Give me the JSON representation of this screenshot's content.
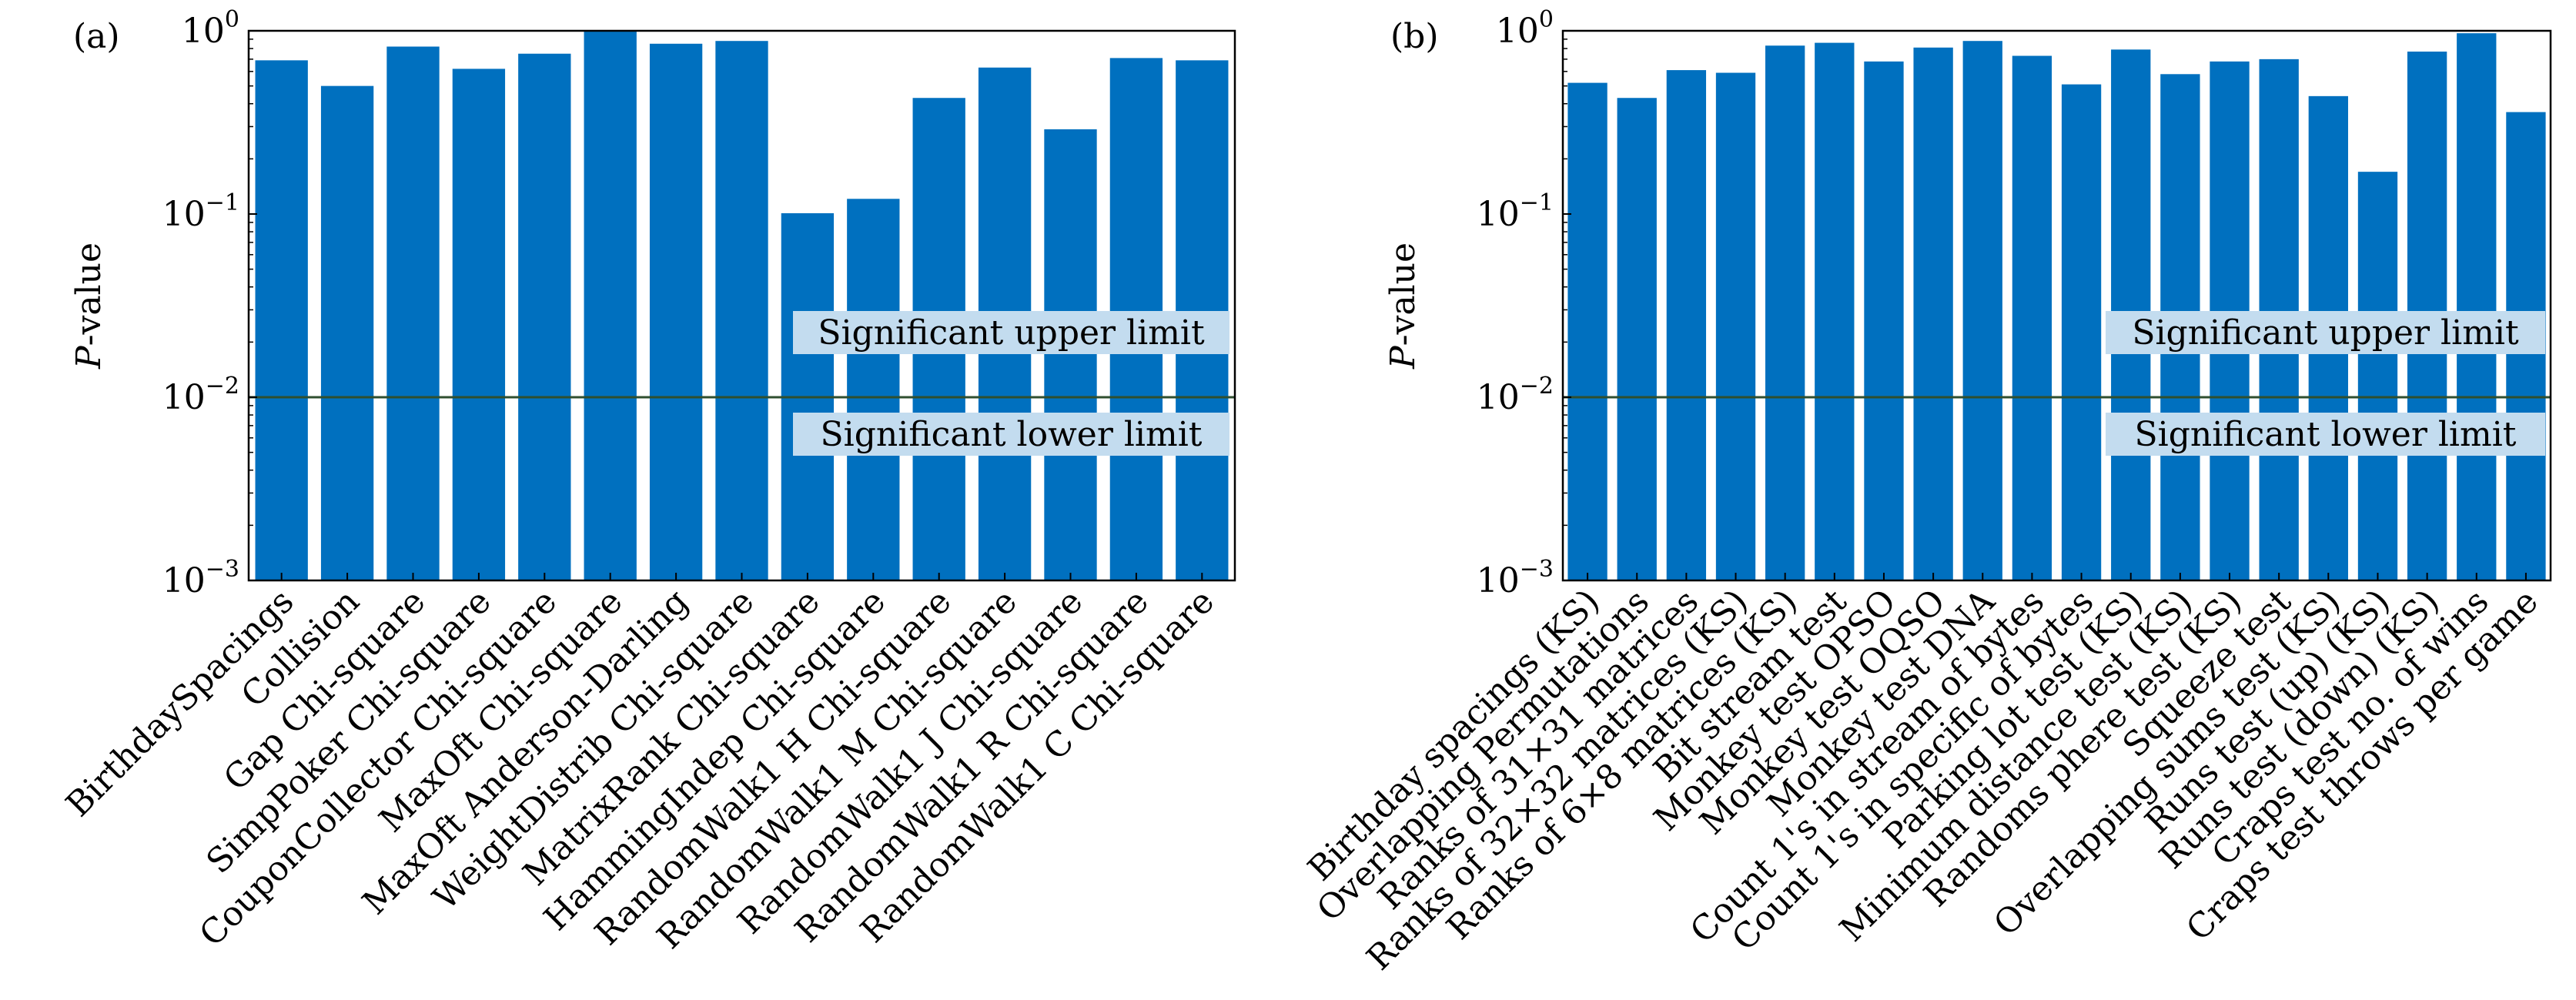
{
  "colors": {
    "bar": "#0070bf",
    "threshold_line": "#2f4f2f",
    "label_box": "#c3dcef",
    "axes": "#000000"
  },
  "chart_data": [
    {
      "panel": "(a)",
      "type": "bar",
      "yscale": "log",
      "ylabel": "P-value",
      "ylim": [
        0.001,
        1
      ],
      "yticks": [
        {
          "value": 1,
          "mant": "10",
          "exp": "0"
        },
        {
          "value": 0.1,
          "mant": "10",
          "exp": "−1"
        },
        {
          "value": 0.01,
          "mant": "10",
          "exp": "−2"
        },
        {
          "value": 0.001,
          "mant": "10",
          "exp": "−3"
        }
      ],
      "threshold": 0.01,
      "annotations": {
        "upper": "Significant upper limit",
        "lower": "Significant lower limit"
      },
      "categories": [
        "BirthdaySpacings",
        "Collision",
        "Gap Chi-square",
        "SimpPoker Chi-square",
        "CouponCollector Chi-square",
        "MaxOft Chi-square",
        "MaxOft Anderson-Darling",
        "WeightDistrib Chi-square",
        "MatrixRank Chi-square",
        "HammingIndep Chi-square",
        "RandomWalk1 H Chi-square",
        "RandomWalk1 M Chi-square",
        "RandomWalk1 J Chi-square",
        "RandomWalk1 R Chi-square",
        "RandomWalk1 C Chi-square"
      ],
      "values": [
        0.69,
        0.5,
        0.82,
        0.62,
        0.75,
        0.99,
        0.85,
        0.88,
        0.101,
        0.121,
        0.43,
        0.63,
        0.29,
        0.71,
        0.69
      ]
    },
    {
      "panel": "(b)",
      "type": "bar",
      "yscale": "log",
      "ylabel": "P-value",
      "ylim": [
        0.001,
        1
      ],
      "yticks": [
        {
          "value": 1,
          "mant": "10",
          "exp": "0"
        },
        {
          "value": 0.1,
          "mant": "10",
          "exp": "−1"
        },
        {
          "value": 0.01,
          "mant": "10",
          "exp": "−2"
        },
        {
          "value": 0.001,
          "mant": "10",
          "exp": "−3"
        }
      ],
      "threshold": 0.01,
      "annotations": {
        "upper": "Significant upper limit",
        "lower": "Significant lower limit"
      },
      "categories": [
        "Birthday spacings (KS)",
        "Overlapping Permutations",
        "Ranks of 31×31 matrices",
        "Ranks of 32×32 matrices (KS)",
        "Ranks of 6×8 matrices (KS)",
        "Bit stream test",
        "Monkey test OPSO",
        "Monkey test OQSO",
        "Monkey test DNA",
        "Count 1's in stream of bytes",
        "Count 1's in specific of bytes",
        "Parking lot test (KS)",
        "Minimum distance test (KS)",
        "Randoms phere test (KS)",
        "Squeeze test",
        "Overlapping sums test (KS)",
        "Runs test (up) (KS)",
        "Runs test (down) (KS)",
        "Craps test no. of wins",
        "Craps test throws per game"
      ],
      "values": [
        0.52,
        0.43,
        0.61,
        0.59,
        0.83,
        0.86,
        0.68,
        0.81,
        0.88,
        0.73,
        0.51,
        0.79,
        0.58,
        0.68,
        0.7,
        0.44,
        0.17,
        0.77,
        0.97,
        0.36
      ]
    }
  ]
}
